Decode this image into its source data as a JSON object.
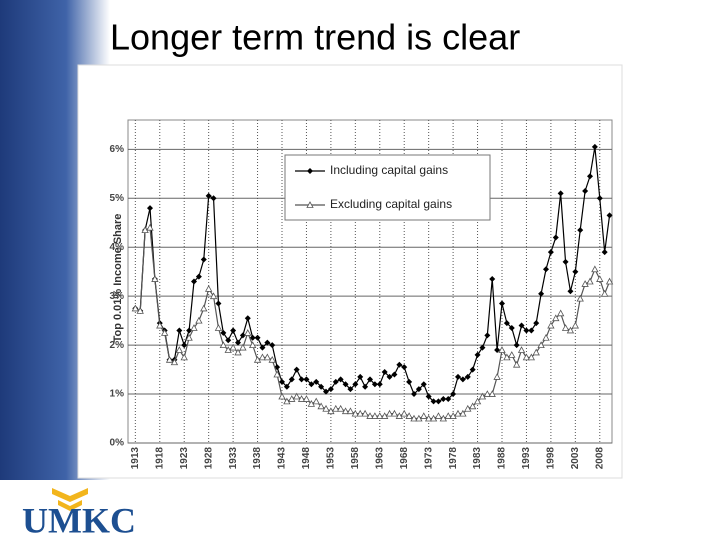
{
  "logo": "UMKC",
  "chart_data": {
    "type": "line",
    "title": "Longer term trend is clear",
    "y_label": "Top 0.01% Income Share",
    "x": [
      1913,
      1914,
      1915,
      1916,
      1917,
      1918,
      1919,
      1920,
      1921,
      1922,
      1923,
      1924,
      1925,
      1926,
      1927,
      1928,
      1929,
      1930,
      1931,
      1932,
      1933,
      1934,
      1935,
      1936,
      1937,
      1938,
      1939,
      1940,
      1941,
      1942,
      1943,
      1944,
      1945,
      1946,
      1947,
      1948,
      1949,
      1950,
      1951,
      1952,
      1953,
      1954,
      1955,
      1956,
      1957,
      1958,
      1959,
      1960,
      1961,
      1962,
      1963,
      1964,
      1965,
      1966,
      1967,
      1968,
      1969,
      1970,
      1971,
      1972,
      1973,
      1974,
      1975,
      1976,
      1977,
      1978,
      1979,
      1980,
      1981,
      1982,
      1983,
      1984,
      1985,
      1986,
      1987,
      1988,
      1989,
      1990,
      1991,
      1992,
      1993,
      1994,
      1995,
      1996,
      1997,
      1998,
      1999,
      2000,
      2001,
      2002,
      2003,
      2004,
      2005,
      2006,
      2007,
      2008,
      2009,
      2010
    ],
    "series": [
      {
        "name": "Including capital gains",
        "color": "#000000",
        "marker": "diamond",
        "values": [
          2.75,
          2.7,
          4.35,
          4.8,
          3.35,
          2.45,
          2.3,
          1.7,
          1.7,
          2.3,
          2.0,
          2.3,
          3.3,
          3.4,
          3.75,
          5.05,
          5.0,
          2.85,
          2.25,
          2.1,
          2.3,
          2.05,
          2.2,
          2.55,
          2.15,
          2.15,
          1.95,
          2.05,
          2.0,
          1.55,
          1.25,
          1.15,
          1.3,
          1.5,
          1.3,
          1.3,
          1.2,
          1.25,
          1.15,
          1.05,
          1.1,
          1.25,
          1.3,
          1.2,
          1.1,
          1.2,
          1.35,
          1.15,
          1.3,
          1.2,
          1.2,
          1.45,
          1.35,
          1.4,
          1.6,
          1.55,
          1.25,
          1.0,
          1.1,
          1.2,
          0.95,
          0.85,
          0.85,
          0.9,
          0.9,
          1.0,
          1.35,
          1.3,
          1.35,
          1.5,
          1.8,
          1.95,
          2.2,
          3.35,
          1.9,
          2.85,
          2.45,
          2.35,
          2.0,
          2.4,
          2.3,
          2.3,
          2.45,
          3.05,
          3.55,
          3.9,
          4.2,
          5.1,
          3.7,
          3.1,
          3.5,
          4.35,
          5.15,
          5.45,
          6.05,
          5.0,
          3.9,
          4.65
        ]
      },
      {
        "name": "Excluding capital gains",
        "color": "#555555",
        "marker": "triangle",
        "values": [
          2.75,
          2.7,
          4.35,
          4.4,
          3.35,
          2.4,
          2.25,
          1.7,
          1.65,
          1.9,
          1.75,
          2.15,
          2.35,
          2.5,
          2.75,
          3.15,
          3.0,
          2.35,
          2.0,
          1.9,
          1.95,
          1.85,
          1.95,
          2.25,
          2.0,
          1.7,
          1.75,
          1.75,
          1.7,
          1.4,
          0.95,
          0.85,
          0.9,
          0.95,
          0.9,
          0.9,
          0.8,
          0.85,
          0.75,
          0.7,
          0.65,
          0.7,
          0.7,
          0.65,
          0.65,
          0.6,
          0.6,
          0.6,
          0.55,
          0.55,
          0.55,
          0.55,
          0.6,
          0.6,
          0.55,
          0.6,
          0.55,
          0.5,
          0.5,
          0.55,
          0.5,
          0.5,
          0.55,
          0.5,
          0.55,
          0.55,
          0.6,
          0.6,
          0.7,
          0.75,
          0.85,
          0.95,
          1.0,
          1.0,
          1.35,
          1.9,
          1.75,
          1.8,
          1.6,
          1.9,
          1.75,
          1.75,
          1.85,
          2.0,
          2.15,
          2.4,
          2.55,
          2.65,
          2.35,
          2.3,
          2.4,
          2.95,
          3.25,
          3.3,
          3.55,
          3.35,
          3.05,
          3.3
        ]
      }
    ],
    "xlim": [
      1911.5,
      2010.5
    ],
    "xticks": [
      1913,
      1918,
      1923,
      1928,
      1933,
      1938,
      1943,
      1948,
      1953,
      1958,
      1963,
      1968,
      1973,
      1978,
      1983,
      1988,
      1993,
      1998,
      2003,
      2008
    ],
    "ylim": [
      0,
      6.6
    ],
    "yticks": [
      {
        "value": 0,
        "label": "0%"
      },
      {
        "value": 1,
        "label": "1%"
      },
      {
        "value": 2,
        "label": "2%"
      },
      {
        "value": 3,
        "label": "3%"
      },
      {
        "value": 4,
        "label": "4%"
      },
      {
        "value": 5,
        "label": "5%"
      },
      {
        "value": 6,
        "label": "6%"
      }
    ],
    "grid": true,
    "legend": "upper center"
  }
}
